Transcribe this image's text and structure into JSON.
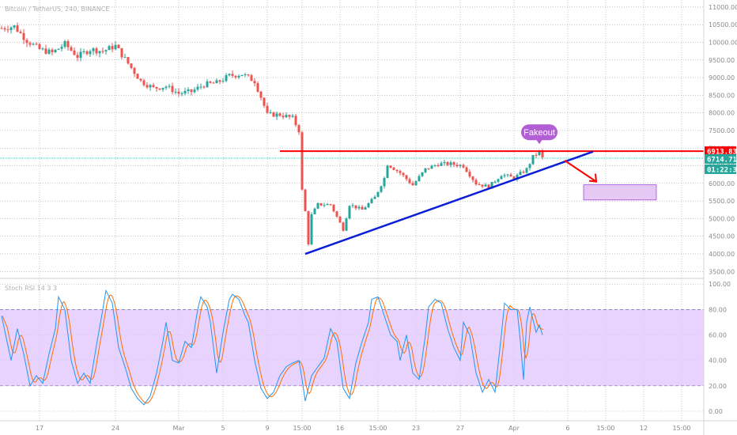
{
  "header": {
    "symbol": "Bitcoin / TetherUS, 240, BINANCE",
    "indicator": "Stoch RSI 14 3 3"
  },
  "colors": {
    "up": "#26a69a",
    "down": "#ef5350",
    "resistance": "#ff0000",
    "trend": "#0a1fd6",
    "zone_fill": "#e6c8f5",
    "zone_stroke": "#a64dd6",
    "fakeout": "#b25fd6",
    "osc_band": "#e0c4ff",
    "k_line": "#2196f3",
    "d_line": "#ff6d00"
  },
  "chart_data": [
    {
      "type": "candlestick",
      "title": "",
      "ylim": [
        3350,
        11200
      ],
      "y_ticks": [
        3500,
        4000,
        4500,
        5000,
        5500,
        6000,
        6500,
        7000,
        7500,
        8000,
        8500,
        9000,
        9500,
        10000,
        10500,
        11000
      ],
      "y_tick_labels": [
        "3500.00",
        "4000.00",
        "4500.00",
        "5000.00",
        "5500.00",
        "6000.00",
        "6500.00",
        "7000.00",
        "7500.00",
        "8000.00",
        "8500.00",
        "9000.00",
        "9500.00",
        "10000.00",
        "10500.00",
        "11000.00"
      ],
      "x_tick_labels": [
        "17",
        "24",
        "Mar",
        "5",
        "9",
        "15:00",
        "16",
        "15:00",
        "23",
        "27",
        "Apr",
        "6",
        "15:00",
        "12",
        "15:00"
      ],
      "x_tick_slots": [
        12,
        36,
        56,
        70,
        84,
        95,
        107,
        119,
        131,
        145,
        162,
        179,
        191,
        203,
        215
      ],
      "slot_count": 232,
      "close_path": [
        [
          0,
          10400
        ],
        [
          4,
          10450
        ],
        [
          8,
          10050
        ],
        [
          12,
          9800
        ],
        [
          16,
          9700
        ],
        [
          20,
          9950
        ],
        [
          24,
          9600
        ],
        [
          28,
          9800
        ],
        [
          32,
          9750
        ],
        [
          36,
          9900
        ],
        [
          40,
          9400
        ],
        [
          44,
          8900
        ],
        [
          48,
          8700
        ],
        [
          52,
          8750
        ],
        [
          56,
          8550
        ],
        [
          60,
          8600
        ],
        [
          64,
          8800
        ],
        [
          68,
          8850
        ],
        [
          72,
          9050
        ],
        [
          76,
          9100
        ],
        [
          80,
          8900
        ],
        [
          82,
          8450
        ],
        [
          84,
          7950
        ],
        [
          88,
          7950
        ],
        [
          92,
          7850
        ],
        [
          94,
          7500
        ],
        [
          95,
          5800
        ],
        [
          96,
          5200
        ],
        [
          97,
          4300
        ],
        [
          98,
          5100
        ],
        [
          100,
          5400
        ],
        [
          104,
          5400
        ],
        [
          108,
          4700
        ],
        [
          110,
          5400
        ],
        [
          114,
          5250
        ],
        [
          118,
          5600
        ],
        [
          121,
          6150
        ],
        [
          122,
          6550
        ],
        [
          126,
          6300
        ],
        [
          130,
          5950
        ],
        [
          134,
          6400
        ],
        [
          138,
          6550
        ],
        [
          142,
          6550
        ],
        [
          146,
          6500
        ],
        [
          150,
          6000
        ],
        [
          154,
          5900
        ],
        [
          158,
          6250
        ],
        [
          162,
          6150
        ],
        [
          166,
          6400
        ],
        [
          168,
          6750
        ],
        [
          170,
          6900
        ],
        [
          171,
          6715
        ]
      ],
      "resistance": {
        "value": 6913.83,
        "label": "6913.83",
        "from_slot": 88,
        "to_slot": 232
      },
      "current_price": {
        "value": 6714.71,
        "label": "6714.71"
      },
      "countdown": {
        "label": "01:22:36"
      },
      "trendline": {
        "from": [
          96,
          4000
        ],
        "to": [
          187,
          6900
        ]
      },
      "target_zone": {
        "x0": 184,
        "x1": 207,
        "y0": 5530,
        "y1": 5960
      },
      "projection": [
        [
          178,
          6650
        ],
        [
          188,
          6050
        ]
      ],
      "annotation": {
        "text": "Fakeout",
        "slot": 170,
        "value": 7450
      }
    },
    {
      "type": "line",
      "title": "",
      "ylim": [
        -5,
        102
      ],
      "y_ticks": [
        0,
        20,
        40,
        60,
        80,
        100
      ],
      "y_tick_labels": [
        "0.00",
        "20.00",
        "40.00",
        "60.00",
        "80.00",
        "100.00"
      ],
      "band": [
        20,
        80
      ],
      "k_path": [
        [
          0,
          75
        ],
        [
          3,
          40
        ],
        [
          5,
          65
        ],
        [
          7,
          45
        ],
        [
          9,
          20
        ],
        [
          11,
          28
        ],
        [
          13,
          22
        ],
        [
          15,
          45
        ],
        [
          17,
          65
        ],
        [
          18,
          90
        ],
        [
          20,
          80
        ],
        [
          22,
          40
        ],
        [
          24,
          22
        ],
        [
          26,
          30
        ],
        [
          28,
          22
        ],
        [
          30,
          52
        ],
        [
          32,
          80
        ],
        [
          33,
          95
        ],
        [
          35,
          85
        ],
        [
          37,
          50
        ],
        [
          39,
          35
        ],
        [
          41,
          18
        ],
        [
          43,
          10
        ],
        [
          45,
          5
        ],
        [
          47,
          12
        ],
        [
          49,
          30
        ],
        [
          51,
          55
        ],
        [
          52,
          70
        ],
        [
          54,
          40
        ],
        [
          56,
          38
        ],
        [
          58,
          55
        ],
        [
          60,
          50
        ],
        [
          62,
          80
        ],
        [
          63,
          90
        ],
        [
          65,
          82
        ],
        [
          66,
          70
        ],
        [
          68,
          30
        ],
        [
          70,
          62
        ],
        [
          72,
          88
        ],
        [
          73,
          92
        ],
        [
          75,
          88
        ],
        [
          77,
          75
        ],
        [
          78,
          70
        ],
        [
          80,
          40
        ],
        [
          82,
          18
        ],
        [
          84,
          10
        ],
        [
          86,
          15
        ],
        [
          88,
          28
        ],
        [
          90,
          35
        ],
        [
          92,
          38
        ],
        [
          94,
          40
        ],
        [
          95,
          25
        ],
        [
          96,
          8
        ],
        [
          98,
          28
        ],
        [
          100,
          35
        ],
        [
          102,
          42
        ],
        [
          104,
          65
        ],
        [
          106,
          55
        ],
        [
          108,
          18
        ],
        [
          110,
          10
        ],
        [
          112,
          38
        ],
        [
          114,
          55
        ],
        [
          116,
          70
        ],
        [
          117,
          88
        ],
        [
          119,
          90
        ],
        [
          121,
          75
        ],
        [
          123,
          60
        ],
        [
          125,
          55
        ],
        [
          126,
          40
        ],
        [
          128,
          60
        ],
        [
          130,
          30
        ],
        [
          132,
          25
        ],
        [
          134,
          60
        ],
        [
          135,
          82
        ],
        [
          137,
          88
        ],
        [
          139,
          85
        ],
        [
          141,
          65
        ],
        [
          143,
          50
        ],
        [
          145,
          40
        ],
        [
          146,
          70
        ],
        [
          148,
          60
        ],
        [
          150,
          30
        ],
        [
          152,
          15
        ],
        [
          154,
          25
        ],
        [
          156,
          15
        ],
        [
          158,
          60
        ],
        [
          159,
          85
        ],
        [
          161,
          80
        ],
        [
          163,
          80
        ],
        [
          164,
          55
        ],
        [
          165,
          25
        ],
        [
          166,
          70
        ],
        [
          167,
          82
        ],
        [
          168,
          72
        ],
        [
          169,
          62
        ],
        [
          170,
          68
        ],
        [
          171,
          60
        ]
      ]
    }
  ]
}
